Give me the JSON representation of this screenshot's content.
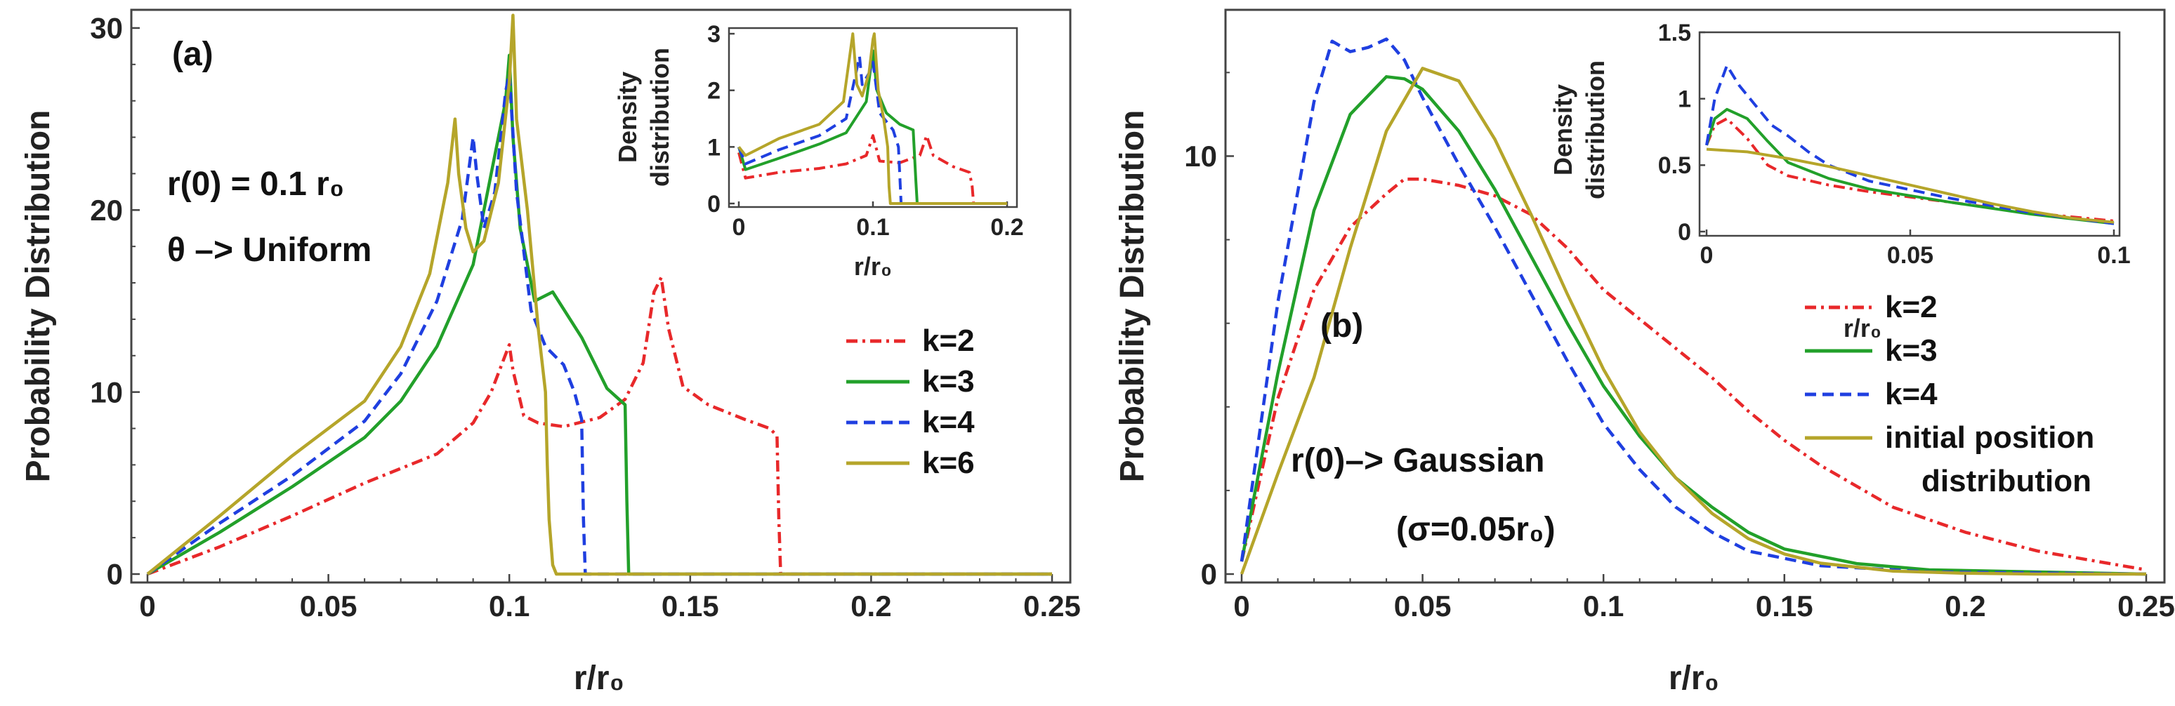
{
  "chart_data": [
    {
      "id": "main-a",
      "type": "line",
      "title": "",
      "panel_label": "(a)",
      "xlabel": "r/r₀",
      "ylabel": "Probability Distribution",
      "xlim": [
        0,
        0.25
      ],
      "ylim": [
        0,
        31
      ],
      "xticks": [
        0,
        0.05,
        0.1,
        0.15,
        0.2,
        0.25
      ],
      "xtick_labels": [
        "0",
        "0.05",
        "0.1",
        "0.15",
        "0.2",
        "0.25"
      ],
      "yticks": [
        0,
        10,
        20,
        30
      ],
      "ytick_labels": [
        "0",
        "10",
        "20",
        "30"
      ],
      "annotations": [
        "r(0) = 0.1 r₀",
        "θ –> Uniform"
      ],
      "legend_position": "center-right",
      "series": [
        {
          "name": "k=2",
          "color": "#e8282a",
          "dash": "dashdot",
          "x": [
            0,
            0.02,
            0.04,
            0.06,
            0.08,
            0.09,
            0.095,
            0.1,
            0.101,
            0.104,
            0.108,
            0.115,
            0.125,
            0.132,
            0.137,
            0.14,
            0.142,
            0.144,
            0.148,
            0.155,
            0.165,
            0.172,
            0.174,
            0.1745,
            0.175,
            0.25
          ],
          "y": [
            0,
            1.5,
            3.2,
            5.0,
            6.6,
            8.3,
            10.0,
            12.6,
            11.2,
            8.7,
            8.3,
            8.1,
            8.6,
            9.6,
            11.6,
            15.5,
            16.3,
            13.5,
            10.3,
            9.3,
            8.5,
            8.0,
            7.6,
            3,
            0,
            0
          ]
        },
        {
          "name": "k=3",
          "color": "#22a02a",
          "dash": "solid",
          "x": [
            0,
            0.02,
            0.04,
            0.06,
            0.07,
            0.08,
            0.09,
            0.095,
            0.099,
            0.1,
            0.101,
            0.103,
            0.107,
            0.112,
            0.12,
            0.127,
            0.132,
            0.1325,
            0.133,
            0.25
          ],
          "y": [
            0,
            2.3,
            4.8,
            7.5,
            9.5,
            12.5,
            17.0,
            22.0,
            26.0,
            28.5,
            24.0,
            19.0,
            15.0,
            15.5,
            13.0,
            10.2,
            9.3,
            4,
            0,
            0
          ]
        },
        {
          "name": "k=4",
          "color": "#1f3fe0",
          "dash": "dashed",
          "x": [
            0,
            0.02,
            0.04,
            0.06,
            0.07,
            0.08,
            0.087,
            0.09,
            0.091,
            0.093,
            0.096,
            0.099,
            0.1,
            0.102,
            0.106,
            0.11,
            0.115,
            0.118,
            0.12,
            0.1205,
            0.121,
            0.25
          ],
          "y": [
            0,
            2.8,
            5.4,
            8.4,
            11.0,
            15.0,
            19.5,
            24.0,
            22.0,
            19.0,
            21.0,
            26.5,
            27.5,
            21.0,
            14.5,
            12.5,
            11.5,
            10.0,
            8.5,
            3,
            0,
            0
          ]
        },
        {
          "name": "k=6",
          "color": "#b5a52a",
          "dash": "solid",
          "x": [
            0,
            0.02,
            0.04,
            0.06,
            0.07,
            0.078,
            0.083,
            0.085,
            0.086,
            0.088,
            0.09,
            0.093,
            0.097,
            0.1,
            0.101,
            0.102,
            0.105,
            0.108,
            0.11,
            0.1105,
            0.111,
            0.112,
            0.113,
            0.25
          ],
          "y": [
            0,
            3.2,
            6.5,
            9.5,
            12.5,
            16.5,
            21.5,
            25.0,
            22.0,
            19.0,
            17.7,
            18.3,
            21.5,
            27.0,
            30.7,
            25.0,
            20.0,
            13.5,
            10.0,
            6.0,
            3.0,
            0.5,
            0,
            0
          ]
        }
      ]
    },
    {
      "id": "inset-a",
      "type": "line",
      "xlabel": "r/r₀",
      "ylabel": "Density distribution",
      "ylabel_lines": [
        "Density",
        "distribution"
      ],
      "xlim": [
        0,
        0.2
      ],
      "ylim": [
        0,
        3.1
      ],
      "xticks": [
        0,
        0.1,
        0.2
      ],
      "xtick_labels": [
        "0",
        "0.1",
        "0.2"
      ],
      "yticks": [
        0,
        1,
        2,
        3
      ],
      "ytick_labels": [
        "0",
        "1",
        "2",
        "3"
      ],
      "series": [
        {
          "name": "k=2",
          "color": "#e8282a",
          "dash": "dashdot",
          "x": [
            0,
            0.005,
            0.03,
            0.06,
            0.08,
            0.095,
            0.1,
            0.105,
            0.12,
            0.135,
            0.14,
            0.145,
            0.16,
            0.172,
            0.174,
            0.175,
            0.2
          ],
          "y": [
            0.9,
            0.45,
            0.55,
            0.62,
            0.7,
            0.85,
            1.2,
            0.75,
            0.72,
            0.85,
            1.2,
            0.85,
            0.65,
            0.55,
            0.3,
            0,
            0
          ]
        },
        {
          "name": "k=3",
          "color": "#22a02a",
          "dash": "solid",
          "x": [
            0,
            0.005,
            0.03,
            0.06,
            0.08,
            0.095,
            0.1,
            0.103,
            0.11,
            0.12,
            0.13,
            0.132,
            0.133,
            0.2
          ],
          "y": [
            1.0,
            0.6,
            0.8,
            1.05,
            1.25,
            1.8,
            2.7,
            2.0,
            1.6,
            1.4,
            1.3,
            0.4,
            0,
            0
          ]
        },
        {
          "name": "k=4",
          "color": "#1f3fe0",
          "dash": "dashed",
          "x": [
            0,
            0.005,
            0.03,
            0.06,
            0.08,
            0.09,
            0.092,
            0.097,
            0.1,
            0.105,
            0.115,
            0.119,
            0.121,
            0.2
          ],
          "y": [
            1.0,
            0.7,
            0.95,
            1.2,
            1.5,
            2.6,
            2.1,
            2.3,
            2.5,
            1.6,
            1.3,
            1.0,
            0,
            0
          ]
        },
        {
          "name": "k=6",
          "color": "#b5a52a",
          "dash": "solid",
          "x": [
            0,
            0.005,
            0.03,
            0.06,
            0.078,
            0.085,
            0.088,
            0.092,
            0.097,
            0.1,
            0.101,
            0.104,
            0.108,
            0.111,
            0.112,
            0.113,
            0.2
          ],
          "y": [
            1.0,
            0.85,
            1.15,
            1.4,
            1.8,
            3.0,
            2.1,
            1.9,
            2.3,
            2.9,
            3.0,
            2.0,
            1.5,
            1.0,
            0.3,
            0,
            0
          ]
        }
      ]
    },
    {
      "id": "main-b",
      "type": "line",
      "title": "",
      "panel_label": "(b)",
      "xlabel": "r/r₀",
      "ylabel": "Probability Distribution",
      "xlim": [
        0,
        0.25
      ],
      "ylim": [
        0,
        13.5
      ],
      "xticks": [
        0,
        0.05,
        0.1,
        0.15,
        0.2,
        0.25
      ],
      "xtick_labels": [
        "0",
        "0.05",
        "0.1",
        "0.15",
        "0.2",
        "0.25"
      ],
      "yticks": [
        0,
        10
      ],
      "ytick_labels": [
        "0",
        "10"
      ],
      "annotations": [
        "r(0)–> Gaussian",
        "(σ=0.05r₀)"
      ],
      "legend_position": "lower-right",
      "series": [
        {
          "name": "k=2",
          "color": "#e8282a",
          "dash": "dashdot",
          "x": [
            0,
            0.01,
            0.02,
            0.03,
            0.04,
            0.045,
            0.05,
            0.06,
            0.07,
            0.08,
            0.09,
            0.1,
            0.11,
            0.12,
            0.13,
            0.14,
            0.15,
            0.16,
            0.18,
            0.2,
            0.22,
            0.24,
            0.25
          ],
          "y": [
            0.3,
            4.2,
            6.8,
            8.3,
            9.1,
            9.45,
            9.45,
            9.3,
            9.05,
            8.6,
            7.8,
            6.8,
            6.1,
            5.4,
            4.7,
            3.9,
            3.2,
            2.6,
            1.6,
            1.0,
            0.55,
            0.25,
            0.1
          ]
        },
        {
          "name": "k=3",
          "color": "#22a02a",
          "dash": "solid",
          "x": [
            0,
            0.01,
            0.02,
            0.03,
            0.04,
            0.045,
            0.05,
            0.06,
            0.07,
            0.08,
            0.09,
            0.1,
            0.11,
            0.12,
            0.13,
            0.14,
            0.15,
            0.17,
            0.19,
            0.22,
            0.25
          ],
          "y": [
            0.3,
            4.8,
            8.7,
            11.0,
            11.9,
            11.85,
            11.6,
            10.6,
            9.2,
            7.6,
            6.0,
            4.5,
            3.3,
            2.3,
            1.6,
            1.0,
            0.6,
            0.25,
            0.1,
            0.05,
            0
          ]
        },
        {
          "name": "k=4",
          "color": "#1f3fe0",
          "dash": "dashed",
          "x": [
            0,
            0.01,
            0.02,
            0.025,
            0.03,
            0.035,
            0.04,
            0.045,
            0.05,
            0.06,
            0.07,
            0.08,
            0.09,
            0.1,
            0.11,
            0.12,
            0.13,
            0.14,
            0.16,
            0.19,
            0.25
          ],
          "y": [
            0.3,
            6.5,
            11.3,
            12.75,
            12.5,
            12.6,
            12.8,
            12.3,
            11.4,
            9.8,
            8.3,
            6.7,
            5.1,
            3.6,
            2.5,
            1.6,
            1.0,
            0.55,
            0.2,
            0.05,
            0
          ]
        },
        {
          "name": "initial position distribution",
          "color": "#b5a52a",
          "dash": "solid",
          "x": [
            0,
            0.01,
            0.02,
            0.03,
            0.04,
            0.05,
            0.06,
            0.07,
            0.08,
            0.09,
            0.1,
            0.11,
            0.12,
            0.13,
            0.14,
            0.15,
            0.16,
            0.18,
            0.2,
            0.22,
            0.25
          ],
          "y": [
            0,
            2.4,
            4.7,
            7.8,
            10.6,
            12.1,
            11.8,
            10.4,
            8.6,
            6.7,
            4.9,
            3.4,
            2.3,
            1.45,
            0.85,
            0.48,
            0.26,
            0.07,
            0.02,
            0,
            0
          ]
        }
      ]
    },
    {
      "id": "inset-b",
      "type": "line",
      "xlabel": "r/r₀",
      "ylabel": "Density distribution",
      "ylabel_lines": [
        "Density",
        "distribution"
      ],
      "xlim": [
        0,
        0.1
      ],
      "ylim": [
        0,
        1.5
      ],
      "xticks": [
        0,
        0.05,
        0.1
      ],
      "xtick_labels": [
        "0",
        "0.05",
        "0.1"
      ],
      "yticks": [
        0,
        0.5,
        1,
        1.5
      ],
      "ytick_labels": [
        "0",
        "0.5",
        "1",
        "1.5"
      ],
      "series": [
        {
          "name": "k=2",
          "color": "#e8282a",
          "dash": "dashdot",
          "x": [
            0,
            0.002,
            0.005,
            0.01,
            0.015,
            0.02,
            0.03,
            0.04,
            0.06,
            0.08,
            0.1
          ],
          "y": [
            0.65,
            0.8,
            0.85,
            0.7,
            0.5,
            0.42,
            0.35,
            0.3,
            0.22,
            0.14,
            0.08
          ]
        },
        {
          "name": "k=3",
          "color": "#22a02a",
          "dash": "solid",
          "x": [
            0,
            0.002,
            0.005,
            0.01,
            0.015,
            0.02,
            0.03,
            0.04,
            0.06,
            0.08,
            0.1
          ],
          "y": [
            0.65,
            0.85,
            0.92,
            0.85,
            0.68,
            0.52,
            0.4,
            0.32,
            0.22,
            0.13,
            0.06
          ]
        },
        {
          "name": "k=4",
          "color": "#1f3fe0",
          "dash": "dashed",
          "x": [
            0,
            0.002,
            0.005,
            0.008,
            0.012,
            0.016,
            0.02,
            0.025,
            0.03,
            0.04,
            0.06,
            0.08,
            0.1
          ],
          "y": [
            0.65,
            1.0,
            1.25,
            1.1,
            0.95,
            0.8,
            0.72,
            0.6,
            0.5,
            0.38,
            0.25,
            0.14,
            0.06
          ]
        },
        {
          "name": "initial position distribution",
          "color": "#b5a52a",
          "dash": "solid",
          "x": [
            0,
            0.01,
            0.02,
            0.03,
            0.04,
            0.05,
            0.06,
            0.07,
            0.08,
            0.09,
            0.1
          ],
          "y": [
            0.62,
            0.6,
            0.55,
            0.49,
            0.42,
            0.35,
            0.28,
            0.21,
            0.15,
            0.1,
            0.07
          ]
        }
      ]
    }
  ]
}
